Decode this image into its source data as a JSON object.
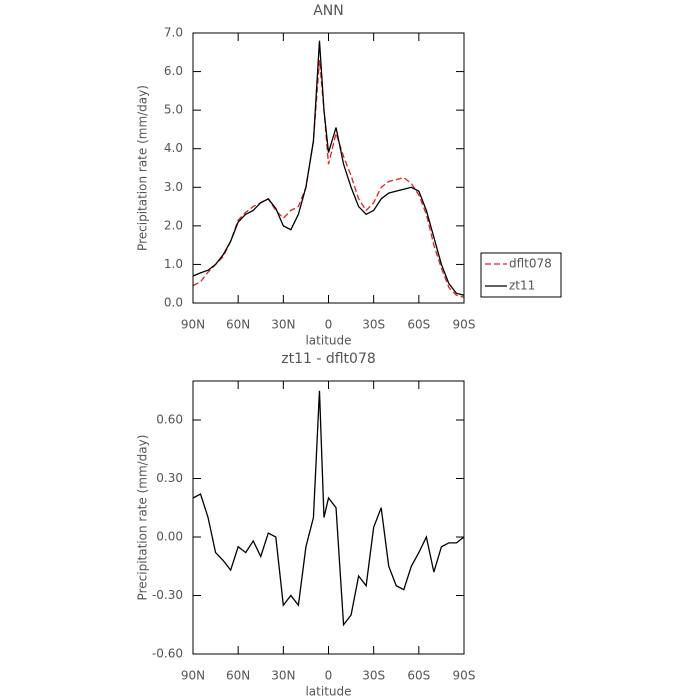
{
  "chart_data": [
    {
      "type": "line",
      "title": "ANN",
      "xlabel": "latitude",
      "ylabel": "Precipitation rate (mm/day)",
      "x": [
        90,
        85,
        80,
        75,
        70,
        65,
        60,
        55,
        50,
        45,
        40,
        35,
        30,
        25,
        20,
        15,
        10,
        6,
        3,
        0,
        -5,
        -10,
        -15,
        -20,
        -25,
        -30,
        -35,
        -40,
        -45,
        -50,
        -55,
        -60,
        -65,
        -70,
        -75,
        -80,
        -85,
        -90
      ],
      "series": [
        {
          "name": "dflt078",
          "color": "#e02020",
          "linestyle": "dashed",
          "values": [
            0.45,
            0.55,
            0.8,
            1.0,
            1.2,
            1.6,
            2.15,
            2.35,
            2.5,
            2.6,
            2.7,
            2.4,
            2.2,
            2.4,
            2.5,
            3.0,
            4.2,
            6.3,
            5.0,
            3.6,
            4.4,
            3.8,
            3.3,
            2.7,
            2.4,
            2.6,
            3.0,
            3.15,
            3.2,
            3.25,
            3.1,
            2.8,
            2.3,
            1.5,
            0.9,
            0.4,
            0.2,
            0.15
          ]
        },
        {
          "name": "zt11",
          "color": "#000000",
          "linestyle": "solid",
          "values": [
            0.7,
            0.78,
            0.85,
            1.0,
            1.25,
            1.6,
            2.1,
            2.3,
            2.4,
            2.6,
            2.7,
            2.45,
            2.0,
            1.9,
            2.3,
            3.0,
            4.2,
            6.8,
            5.0,
            3.9,
            4.55,
            3.6,
            3.0,
            2.5,
            2.3,
            2.4,
            2.7,
            2.85,
            2.9,
            2.95,
            3.0,
            2.9,
            2.4,
            1.7,
            1.0,
            0.5,
            0.25,
            0.2
          ]
        }
      ],
      "xlim": [
        90,
        -90
      ],
      "xticks": [
        {
          "value": 90,
          "label": "90N"
        },
        {
          "value": 60,
          "label": "60N"
        },
        {
          "value": 30,
          "label": "30N"
        },
        0,
        {
          "value": -30,
          "label": "30S"
        },
        {
          "value": -60,
          "label": "60S"
        },
        {
          "value": -90,
          "label": "90S"
        }
      ],
      "ylim": [
        0,
        7
      ],
      "yticks": [
        {
          "value": 0,
          "label": "0.0"
        },
        {
          "value": 1,
          "label": "1.0"
        },
        {
          "value": 2,
          "label": "2.0"
        },
        {
          "value": 3,
          "label": "3.0"
        },
        {
          "value": 4,
          "label": "4.0"
        },
        {
          "value": 5,
          "label": "5.0"
        },
        {
          "value": 6,
          "label": "6.0"
        },
        {
          "value": 7,
          "label": "7.0"
        }
      ],
      "legend": "right"
    },
    {
      "type": "line",
      "title": "zt11 - dflt078",
      "xlabel": "latitude",
      "ylabel": "Precipitation rate (mm/day)",
      "x": [
        90,
        85,
        80,
        75,
        70,
        65,
        60,
        55,
        50,
        45,
        40,
        35,
        30,
        25,
        20,
        15,
        10,
        6,
        3,
        0,
        -5,
        -10,
        -15,
        -20,
        -25,
        -30,
        -35,
        -40,
        -45,
        -50,
        -55,
        -60,
        -65,
        -70,
        -75,
        -80,
        -85,
        -90
      ],
      "series": [
        {
          "name": "zt11 - dflt078",
          "color": "#000000",
          "linestyle": "solid",
          "values": [
            0.2,
            0.22,
            0.1,
            -0.08,
            -0.12,
            -0.17,
            -0.05,
            -0.08,
            -0.02,
            -0.1,
            0.02,
            0.0,
            -0.35,
            -0.3,
            -0.35,
            -0.05,
            0.1,
            0.75,
            0.1,
            0.2,
            0.15,
            -0.45,
            -0.4,
            -0.2,
            -0.25,
            0.05,
            0.15,
            -0.15,
            -0.25,
            -0.27,
            -0.15,
            -0.08,
            0.0,
            -0.18,
            -0.05,
            -0.03,
            -0.03,
            0.0
          ]
        }
      ],
      "xlim": [
        90,
        -90
      ],
      "xticks": [
        {
          "value": 90,
          "label": "90N"
        },
        {
          "value": 60,
          "label": "60N"
        },
        {
          "value": 30,
          "label": "30N"
        },
        0,
        {
          "value": -30,
          "label": "30S"
        },
        {
          "value": -60,
          "label": "60S"
        },
        {
          "value": -90,
          "label": "90S"
        }
      ],
      "ylim": [
        -0.6,
        0.8
      ],
      "yticks": [
        {
          "value": -0.6,
          "label": "-0.60"
        },
        {
          "value": -0.3,
          "label": "-0.30"
        },
        {
          "value": 0,
          "label": "0.00"
        },
        {
          "value": 0.3,
          "label": "0.30"
        },
        {
          "value": 0.6,
          "label": "0.60"
        }
      ]
    }
  ]
}
